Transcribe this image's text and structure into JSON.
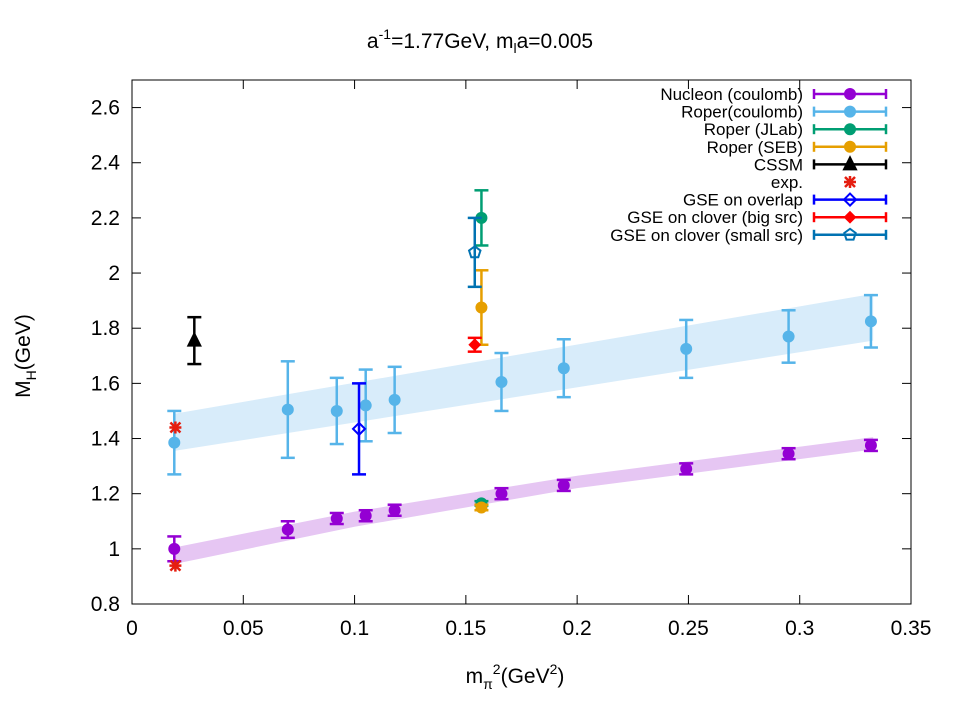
{
  "chart_data": {
    "type": "errorbar",
    "title": [
      "a",
      "-1",
      "=1.77GeV,  m",
      "l",
      "a=0.005"
    ],
    "xlabel": [
      "m",
      "π",
      "2",
      "(GeV",
      "2",
      ")"
    ],
    "ylabel": [
      "M",
      "H",
      "(GeV)"
    ],
    "xlim": [
      0,
      0.35
    ],
    "xticks": [
      0,
      0.05,
      0.1,
      0.15,
      0.2,
      0.25,
      0.3,
      0.35
    ],
    "ylim": [
      0.8,
      2.7
    ],
    "yticks": [
      0.8,
      1,
      1.2,
      1.4,
      1.6,
      1.8,
      2,
      2.2,
      2.4,
      2.6
    ],
    "legend": "top-right",
    "bands": [
      {
        "color": "#e6c6f3",
        "x": [
          0.019,
          0.1,
          0.2,
          0.333
        ],
        "lower": [
          0.945,
          1.08,
          1.22,
          1.36
        ],
        "upper": [
          1.005,
          1.135,
          1.265,
          1.405
        ]
      },
      {
        "color": "#d8ecfa",
        "x": [
          0.019,
          0.333
        ],
        "lower": [
          1.355,
          1.755
        ],
        "upper": [
          1.49,
          1.925
        ]
      }
    ],
    "series": [
      {
        "name": "Nucleon (coulomb)",
        "color": "#9400d3",
        "marker": "circle",
        "x": [
          0.019,
          0.07,
          0.092,
          0.105,
          0.118,
          0.166,
          0.194,
          0.249,
          0.295,
          0.332
        ],
        "values": [
          1.0,
          1.07,
          1.11,
          1.12,
          1.14,
          1.2,
          1.23,
          1.29,
          1.345,
          1.375
        ],
        "errors": [
          0.045,
          0.03,
          0.02,
          0.02,
          0.02,
          0.02,
          0.02,
          0.02,
          0.02,
          0.02
        ]
      },
      {
        "name": "Roper(coulomb)",
        "color": "#56b4e9",
        "marker": "circle",
        "x": [
          0.019,
          0.07,
          0.092,
          0.105,
          0.118,
          0.166,
          0.194,
          0.249,
          0.295,
          0.332
        ],
        "values": [
          1.385,
          1.505,
          1.5,
          1.52,
          1.54,
          1.605,
          1.655,
          1.725,
          1.77,
          1.825
        ],
        "errors": [
          0.115,
          0.175,
          0.12,
          0.13,
          0.12,
          0.105,
          0.105,
          0.105,
          0.095,
          0.095
        ]
      },
      {
        "name": "Roper (JLab)",
        "color": "#009e73",
        "marker": "circle",
        "x": [
          0.157,
          0.157
        ],
        "values": [
          1.165,
          2.2
        ],
        "errors": [
          0.008,
          0.1
        ]
      },
      {
        "name": "Roper (SEB)",
        "color": "#e69f00",
        "marker": "circle",
        "x": [
          0.157,
          0.157
        ],
        "values": [
          1.15,
          1.875
        ],
        "errors": [
          0.01,
          0.135
        ]
      },
      {
        "name": "CSSM",
        "color": "#000000",
        "marker": "triangle",
        "x": [
          0.028
        ],
        "values": [
          1.755
        ],
        "errors": [
          0.085
        ]
      },
      {
        "name": "exp.",
        "color": "#e51e10",
        "marker": "star",
        "x": [
          0.0195,
          0.0195
        ],
        "values": [
          1.44,
          0.939
        ]
      },
      {
        "name": "GSE on overlap",
        "color": "#0000ff",
        "marker": "diamond",
        "x": [
          0.102
        ],
        "values": [
          1.435
        ],
        "errors": [
          0.165
        ]
      },
      {
        "name": "GSE on clover (big src)",
        "color": "#ff0000",
        "marker": "diamond-filled",
        "x": [
          0.154
        ],
        "values": [
          1.74
        ],
        "errors": [
          0.025
        ]
      },
      {
        "name": "GSE on clover (small src)",
        "color": "#0072b2",
        "marker": "pentagon",
        "x": [
          0.154
        ],
        "values": [
          2.075
        ],
        "errors": [
          0.125
        ]
      }
    ]
  }
}
